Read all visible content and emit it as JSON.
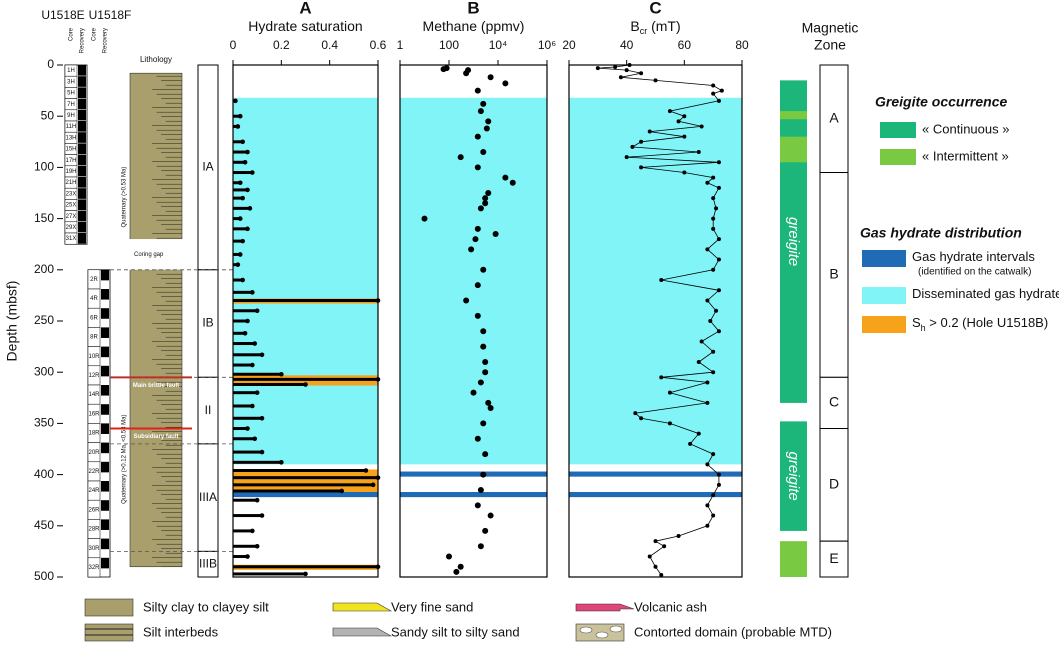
{
  "depth_axis": {
    "label": "Depth (mbsf)",
    "ylim": [
      0,
      500
    ],
    "yticks": [
      0,
      50,
      100,
      150,
      200,
      250,
      300,
      350,
      400,
      450,
      500
    ]
  },
  "holes": [
    {
      "name": "U1518E",
      "column_labels": [
        "Core",
        "Recovery"
      ],
      "top": 0,
      "bottom": 175,
      "cores": [
        "1H",
        "3H",
        "5H",
        "7H",
        "9H",
        "11H",
        "13H",
        "15H",
        "17H",
        "19H",
        "21H",
        "23X",
        "25X",
        "27X",
        "29X",
        "31X"
      ]
    },
    {
      "name": "U1518F",
      "column_labels": [
        "Core",
        "Recovery"
      ],
      "top": 200,
      "bottom": 500,
      "cores": [
        "2R",
        "4R",
        "6R",
        "8R",
        "10R",
        "12R",
        "14R",
        "16R",
        "18R",
        "20R",
        "22R",
        "24R",
        "26R",
        "28R",
        "30R",
        "32R"
      ]
    }
  ],
  "lithology": {
    "title": "Lithology",
    "coring_gap": {
      "label": "Coring gap",
      "top": 170,
      "bottom": 200
    },
    "top": 8,
    "bottom": 490,
    "color": "#a89f6c",
    "main_fault": {
      "label": "Main brittle fault",
      "depth": 305
    },
    "subsidiary_fault": {
      "label": "Subsidiary fault",
      "depth": 355
    },
    "age_upper": "Quaternary (>0.53 Ma)",
    "age_lower": "Quaternary (>0.12 Ma, <0.53 Ma)"
  },
  "units": [
    {
      "label": "IA",
      "top": 0,
      "bottom": 200
    },
    {
      "label": "IB",
      "top": 200,
      "bottom": 305
    },
    {
      "label": "II",
      "top": 305,
      "bottom": 370
    },
    {
      "label": "IIIA",
      "top": 370,
      "bottom": 475
    },
    {
      "label": "IIIB",
      "top": 475,
      "bottom": 500
    }
  ],
  "shared_bands": [
    {
      "top": 32,
      "bottom": 390,
      "color": "#80f4f6"
    },
    {
      "top": 397,
      "bottom": 402,
      "color": "#1f6bb5"
    },
    {
      "top": 417,
      "bottom": 422,
      "color": "#1f6bb5"
    }
  ],
  "chart_data": [
    {
      "type": "hbar",
      "letter": "A",
      "title": "Hydrate saturation",
      "xlim": [
        0,
        0.6
      ],
      "xticks": [
        0,
        0.2,
        0.4,
        0.6
      ],
      "color": "#000000",
      "bands": [
        {
          "top": 228,
          "bottom": 233,
          "color": "#f7a21b"
        },
        {
          "top": 303,
          "bottom": 313,
          "color": "#f7a21b"
        },
        {
          "top": 395,
          "bottom": 417,
          "color": "#f7a21b"
        },
        {
          "top": 488,
          "bottom": 493,
          "color": "#f7a21b"
        }
      ],
      "depth": [
        35,
        50,
        60,
        75,
        85,
        95,
        105,
        115,
        122,
        130,
        140,
        150,
        160,
        172,
        185,
        195,
        210,
        222,
        230,
        240,
        250,
        262,
        272,
        283,
        293,
        302,
        307,
        312,
        320,
        333,
        345,
        355,
        365,
        378,
        388,
        396,
        403,
        410,
        416,
        425,
        440,
        455,
        470,
        480,
        490,
        497
      ],
      "values": [
        0.01,
        0.03,
        0.02,
        0.04,
        0.06,
        0.05,
        0.08,
        0.03,
        0.06,
        0.04,
        0.07,
        0.03,
        0.06,
        0.04,
        0.03,
        0.02,
        0.04,
        0.08,
        0.6,
        0.1,
        0.06,
        0.05,
        0.09,
        0.12,
        0.08,
        0.2,
        0.6,
        0.3,
        0.1,
        0.08,
        0.12,
        0.06,
        0.09,
        0.12,
        0.2,
        0.55,
        0.6,
        0.58,
        0.45,
        0.1,
        0.12,
        0.08,
        0.1,
        0.06,
        0.6,
        0.3
      ]
    },
    {
      "type": "scatter",
      "letter": "B",
      "title": "Methane (ppmv)",
      "log": true,
      "xlim": [
        1,
        1000000
      ],
      "xticks": [
        1,
        100,
        {
          "value": 10000,
          "label": "10⁴"
        },
        {
          "value": 1000000,
          "label": "10⁶"
        }
      ],
      "color": "#000000",
      "depth": [
        3,
        4,
        5,
        8,
        12,
        18,
        25,
        38,
        45,
        55,
        62,
        70,
        85,
        90,
        100,
        110,
        115,
        125,
        130,
        135,
        140,
        150,
        160,
        165,
        170,
        180,
        200,
        215,
        230,
        245,
        260,
        275,
        290,
        300,
        310,
        320,
        330,
        335,
        350,
        365,
        380,
        400,
        415,
        430,
        440,
        455,
        470,
        480,
        490,
        495
      ],
      "values": [
        80,
        60,
        600,
        500,
        5000,
        20000,
        1500,
        2500,
        2000,
        4000,
        3500,
        1500,
        2500,
        300,
        1500,
        20000,
        40000,
        4000,
        3000,
        3000,
        2000,
        10,
        1500,
        8000,
        1200,
        800,
        2500,
        1500,
        500,
        1500,
        2500,
        2500,
        3000,
        3000,
        2000,
        1000,
        4000,
        5000,
        2500,
        1500,
        3000,
        2500,
        2000,
        1500,
        5000,
        3000,
        2000,
        100,
        300,
        200
      ]
    },
    {
      "type": "line",
      "letter": "C",
      "title": "B",
      "title_sub": "cr",
      "title_suffix": " (mT)",
      "xlim": [
        20,
        80
      ],
      "xticks": [
        20,
        40,
        60,
        80
      ],
      "color": "#000000",
      "depth": [
        0,
        2,
        3,
        5,
        8,
        12,
        15,
        20,
        25,
        28,
        35,
        45,
        50,
        55,
        60,
        65,
        70,
        75,
        80,
        85,
        90,
        95,
        100,
        105,
        110,
        115,
        120,
        130,
        140,
        150,
        160,
        170,
        180,
        190,
        200,
        210,
        220,
        230,
        240,
        250,
        260,
        270,
        280,
        290,
        300,
        305,
        310,
        320,
        330,
        340,
        345,
        350,
        360,
        370,
        380,
        390,
        400,
        410,
        420,
        430,
        440,
        450,
        460,
        465,
        470,
        480,
        490,
        498
      ],
      "values": [
        41,
        36,
        30,
        40,
        45,
        38,
        50,
        70,
        73,
        70,
        72,
        55,
        60,
        58,
        66,
        48,
        60,
        45,
        42,
        65,
        40,
        72,
        45,
        60,
        70,
        68,
        72,
        70,
        71,
        70,
        70,
        72,
        68,
        72,
        70,
        52,
        72,
        68,
        71,
        69,
        72,
        66,
        70,
        65,
        70,
        52,
        68,
        55,
        68,
        43,
        45,
        55,
        65,
        62,
        70,
        68,
        72,
        72,
        70,
        68,
        70,
        68,
        58,
        50,
        53,
        48,
        50,
        52
      ]
    }
  ],
  "greigite": [
    {
      "top": 15,
      "bottom": 330,
      "color": "#1db67a",
      "label": "greigite"
    },
    {
      "top": 45,
      "bottom": 53,
      "color": "#7ac943"
    },
    {
      "top": 70,
      "bottom": 95,
      "color": "#7ac943"
    },
    {
      "top": 348,
      "bottom": 455,
      "color": "#1db67a",
      "label": "greigite"
    },
    {
      "top": 465,
      "bottom": 500,
      "color": "#7ac943"
    }
  ],
  "magnetic_zone": {
    "title": [
      "Magnetic",
      "Zone"
    ],
    "zones": [
      {
        "label": "A",
        "top": 0,
        "bottom": 105
      },
      {
        "label": "B",
        "top": 105,
        "bottom": 305
      },
      {
        "label": "C",
        "top": 305,
        "bottom": 355
      },
      {
        "label": "D",
        "top": 355,
        "bottom": 465
      },
      {
        "label": "E",
        "top": 465,
        "bottom": 500
      }
    ]
  },
  "legend": {
    "greigite_title": "Greigite occurrence",
    "greigite_items": [
      {
        "label": "« Continuous »",
        "color": "#1db67a"
      },
      {
        "label": "« Intermittent »",
        "color": "#7ac943"
      }
    ],
    "hydrate_title": "Gas hydrate distribution",
    "hydrate_items": [
      {
        "label": "Gas hydrate intervals",
        "note": "(identified on the catwalk)",
        "color": "#1f6bb5"
      },
      {
        "label": "Disseminated gas hydrate",
        "color": "#80f4f6"
      },
      {
        "label": "S",
        "sub": "h",
        "suffix": " > 0.2 (Hole U1518B)",
        "color": "#f7a21b"
      }
    ]
  },
  "lithology_legend": [
    {
      "label": "Silty clay to clayey silt",
      "color": "#a89f6c"
    },
    {
      "label": "Silt interbeds",
      "color": "#a89f6c"
    },
    {
      "label": "Very fine sand",
      "color": "#f2e41c"
    },
    {
      "label": "Sandy silt to silty sand",
      "color": "#b3b3b3"
    },
    {
      "label": "Volcanic ash",
      "color": "#e0457b"
    },
    {
      "label": "Contorted domain (probable MTD)",
      "color": "#c9c29a"
    }
  ]
}
